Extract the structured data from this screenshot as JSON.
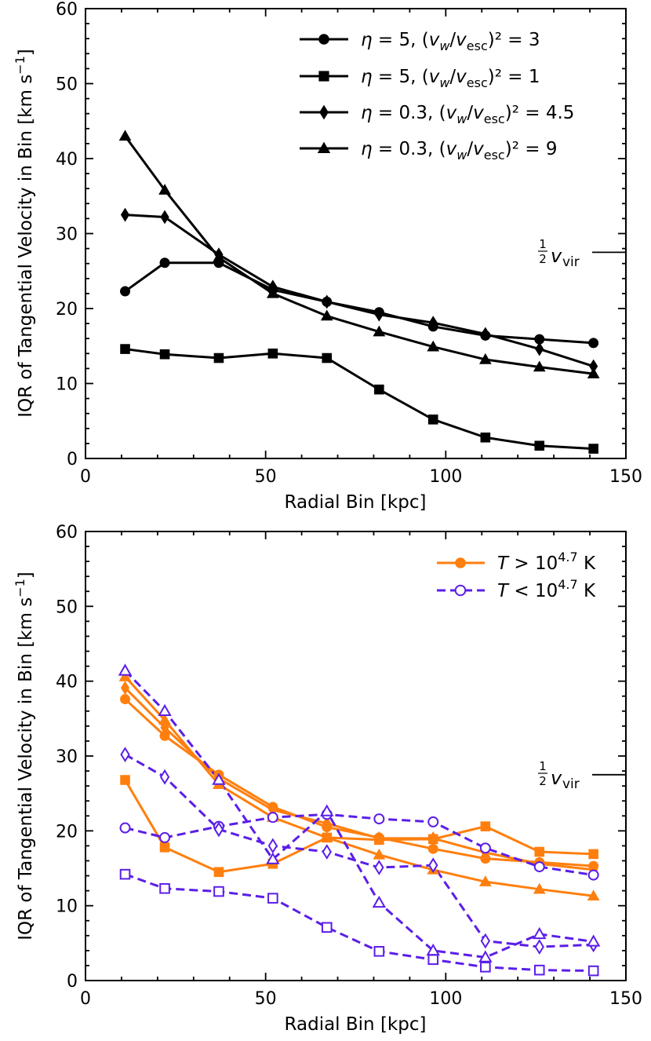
{
  "chart_data": [
    {
      "type": "line",
      "xlabel": "Radial Bin [kpc]",
      "ylabel": "IQR of Tangential Velocity in Bin [km s⁻¹]",
      "xlim": [
        0,
        150
      ],
      "ylim": [
        0,
        60
      ],
      "xticks": [
        0,
        50,
        100,
        150
      ],
      "yticks": [
        0,
        10,
        20,
        30,
        40,
        50,
        60
      ],
      "grid": false,
      "legend_position": "top-right",
      "x": [
        11,
        22,
        37,
        52,
        67,
        81.5,
        96.5,
        111,
        126,
        141
      ],
      "annotation": {
        "text": "½ v_vir",
        "y": 27.5
      },
      "series": [
        {
          "name": "η = 5,  (v_w/v_esc)² = 3",
          "marker": "circle",
          "filled": true,
          "dashed": false,
          "color": "#000000",
          "values": [
            22.3,
            26.1,
            26.1,
            22.5,
            20.9,
            19.5,
            17.6,
            16.4,
            15.9,
            15.4
          ]
        },
        {
          "name": "η = 5,  (v_w/v_esc)² = 1",
          "marker": "square",
          "filled": true,
          "dashed": false,
          "color": "#000000",
          "values": [
            14.6,
            13.9,
            13.4,
            14.0,
            13.4,
            9.2,
            5.2,
            2.8,
            1.7,
            1.3
          ]
        },
        {
          "name": "η = 0.3,  (v_w/v_esc)² = 4.5",
          "marker": "diamond",
          "filled": true,
          "dashed": false,
          "color": "#000000",
          "values": [
            32.5,
            32.2,
            27.2,
            22.9,
            20.9,
            19.2,
            18.1,
            16.6,
            14.6,
            12.3
          ]
        },
        {
          "name": "η = 0.3,  (v_w/v_esc)² = 9",
          "marker": "triangle",
          "filled": true,
          "dashed": false,
          "color": "#000000",
          "values": [
            43.0,
            35.8,
            26.8,
            22.0,
            19.0,
            16.9,
            14.9,
            13.2,
            12.2,
            11.3
          ]
        }
      ],
      "legend": [
        {
          "label_pre": "η = 5,  (v",
          "label_mid": "/v",
          "sub": "esc",
          "label_post": ")² = 3",
          "series": 0
        },
        {
          "label_pre": "η = 5,  (v",
          "label_mid": "/v",
          "sub": "esc",
          "label_post": ")² = 1",
          "series": 1
        },
        {
          "label_pre": "η = 0.3,  (v",
          "label_mid": "/v",
          "sub": "esc",
          "label_post": ")² = 4.5",
          "series": 2
        },
        {
          "label_pre": "η = 0.3,  (v",
          "label_mid": "/v",
          "sub": "esc",
          "label_post": ")² = 9",
          "series": 3
        }
      ]
    },
    {
      "type": "line",
      "xlabel": "Radial Bin [kpc]",
      "ylabel": "IQR of Tangential Velocity in Bin [km s⁻¹]",
      "xlim": [
        0,
        150
      ],
      "ylim": [
        0,
        60
      ],
      "xticks": [
        0,
        50,
        100,
        150
      ],
      "yticks": [
        0,
        10,
        20,
        30,
        40,
        50,
        60
      ],
      "grid": false,
      "legend_position": "top-right",
      "x": [
        11,
        22,
        37,
        52,
        67,
        81.5,
        96.5,
        111,
        126,
        141
      ],
      "annotation": {
        "text": "½ v_vir",
        "y": 27.5
      },
      "colors": {
        "hot": "#ff7f0e",
        "cold": "#5b1ee8"
      },
      "series": [
        {
          "name": "hot circle",
          "marker": "circle",
          "filled": true,
          "dashed": false,
          "color": "#ff7f0e",
          "values": [
            37.6,
            32.7,
            27.5,
            23.2,
            20.5,
            19.1,
            17.6,
            16.3,
            15.8,
            15.3
          ]
        },
        {
          "name": "hot square",
          "marker": "square",
          "filled": true,
          "dashed": false,
          "color": "#ff7f0e",
          "values": [
            26.8,
            17.8,
            14.5,
            15.6,
            19.1,
            18.8,
            18.9,
            20.6,
            17.2,
            16.9
          ]
        },
        {
          "name": "hot diamond",
          "marker": "diamond",
          "filled": true,
          "dashed": false,
          "color": "#ff7f0e",
          "values": [
            39.1,
            33.8,
            27.0,
            22.8,
            21.0,
            19.0,
            19.0,
            17.1,
            15.6,
            14.8
          ]
        },
        {
          "name": "hot triangle",
          "marker": "triangle",
          "filled": true,
          "dashed": false,
          "color": "#ff7f0e",
          "values": [
            40.6,
            34.8,
            26.2,
            21.8,
            19.1,
            16.8,
            14.8,
            13.2,
            12.2,
            11.3
          ]
        },
        {
          "name": "cold circle",
          "marker": "circle",
          "filled": false,
          "dashed": true,
          "color": "#5b1ee8",
          "values": [
            20.4,
            19.1,
            20.6,
            21.8,
            22.2,
            21.6,
            21.2,
            17.7,
            15.2,
            14.1
          ]
        },
        {
          "name": "cold square",
          "marker": "square",
          "filled": false,
          "dashed": true,
          "color": "#5b1ee8",
          "values": [
            14.2,
            12.3,
            11.9,
            11.0,
            7.1,
            3.9,
            2.8,
            1.8,
            1.4,
            1.3
          ]
        },
        {
          "name": "cold diamond",
          "marker": "diamond",
          "filled": false,
          "dashed": true,
          "color": "#5b1ee8",
          "values": [
            30.2,
            27.2,
            20.2,
            18.0,
            17.2,
            15.1,
            15.4,
            5.3,
            4.5,
            4.8
          ]
        },
        {
          "name": "cold triangle",
          "marker": "triangle",
          "filled": false,
          "dashed": true,
          "color": "#5b1ee8",
          "values": [
            41.4,
            36.0,
            26.8,
            16.2,
            22.6,
            10.4,
            4.0,
            3.1,
            6.2,
            5.2
          ]
        }
      ],
      "legend": [
        {
          "label_pre": "T > 10",
          "sup": "4.7",
          "label_post": " K",
          "color": "#ff7f0e",
          "marker": "circle",
          "filled": true,
          "dashed": false
        },
        {
          "label_pre": "T < 10",
          "sup": "4.7",
          "label_post": " K",
          "color": "#5b1ee8",
          "marker": "circle",
          "filled": false,
          "dashed": true
        }
      ]
    }
  ]
}
